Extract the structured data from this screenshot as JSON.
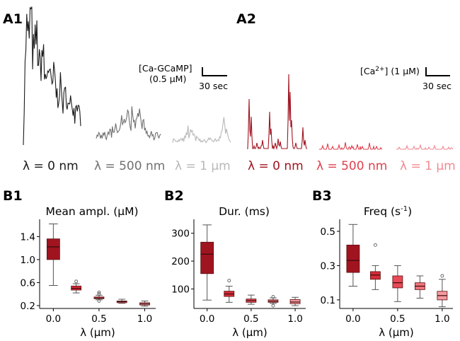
{
  "colors": {
    "gcamp": [
      "#1a1a1a",
      "#707070",
      "#b8b8b8"
    ],
    "calcium": [
      "#a01420",
      "#e0404f",
      "#f08a92"
    ],
    "box_outline": "#5a1010"
  },
  "panels": {
    "A1": {
      "label": "A1",
      "scale_label_line1": "[Ca-GCaMP]",
      "scale_label_line2": "(0.5 µM)",
      "scale_time": "30 sec",
      "traces": [
        {
          "label": "λ = 0 nm"
        },
        {
          "label": "λ = 500 nm"
        },
        {
          "label": "λ = 1 µm"
        }
      ]
    },
    "A2": {
      "label": "A2",
      "scale_label_prefix": "[Ca",
      "scale_label_sup": "2+",
      "scale_label_suffix": "] (1 µM)",
      "scale_time": "30 sec",
      "traces": [
        {
          "label": "λ = 0 nm"
        },
        {
          "label": "λ = 500 nm"
        },
        {
          "label": "λ = 1 µm"
        }
      ]
    }
  },
  "chart_data": [
    {
      "id": "B1",
      "panel_label": "B1",
      "type": "box",
      "title": "Mean ampl. (µM)",
      "xlabel": "λ (µm)",
      "ylim": [
        0.15,
        1.7
      ],
      "xlim": [
        -0.15,
        1.12
      ],
      "yticks": [
        0.2,
        0.6,
        1.0,
        1.4
      ],
      "ytick_labels": [
        "0.2",
        "0.6",
        "1.0",
        "1.4"
      ],
      "xticks": [
        0.0,
        0.5,
        1.0
      ],
      "xtick_labels": [
        "0.0",
        "0.5",
        "1.0"
      ],
      "boxes": [
        {
          "x": 0.0,
          "whislo": 0.55,
          "q1": 1.0,
          "med": 1.22,
          "q3": 1.36,
          "whishi": 1.62,
          "fliers": []
        },
        {
          "x": 0.25,
          "whislo": 0.42,
          "q1": 0.47,
          "med": 0.5,
          "q3": 0.54,
          "whishi": 0.58,
          "fliers": [
            0.62
          ]
        },
        {
          "x": 0.5,
          "whislo": 0.3,
          "q1": 0.32,
          "med": 0.33,
          "q3": 0.35,
          "whishi": 0.38,
          "fliers": [
            0.28,
            0.4,
            0.43
          ]
        },
        {
          "x": 0.75,
          "whislo": 0.24,
          "q1": 0.25,
          "med": 0.27,
          "q3": 0.28,
          "whishi": 0.31,
          "fliers": []
        },
        {
          "x": 1.0,
          "whislo": 0.19,
          "q1": 0.21,
          "med": 0.23,
          "q3": 0.25,
          "whishi": 0.28,
          "fliers": []
        }
      ]
    },
    {
      "id": "B2",
      "panel_label": "B2",
      "type": "box",
      "title": "Dur. (ms)",
      "xlabel": "λ (µm)",
      "ylim": [
        30,
        350
      ],
      "xlim": [
        -0.15,
        1.12
      ],
      "yticks": [
        100,
        200,
        300
      ],
      "ytick_labels": [
        "100",
        "200",
        "300"
      ],
      "xticks": [
        0.0,
        0.5,
        1.0
      ],
      "xtick_labels": [
        "0.0",
        "0.5",
        "1.0"
      ],
      "boxes": [
        {
          "x": 0.0,
          "whislo": 60,
          "q1": 155,
          "med": 225,
          "q3": 268,
          "whishi": 330,
          "fliers": []
        },
        {
          "x": 0.25,
          "whislo": 52,
          "q1": 73,
          "med": 82,
          "q3": 92,
          "whishi": 110,
          "fliers": [
            130
          ]
        },
        {
          "x": 0.5,
          "whislo": 45,
          "q1": 52,
          "med": 58,
          "q3": 64,
          "whishi": 78,
          "fliers": []
        },
        {
          "x": 0.75,
          "whislo": 48,
          "q1": 52,
          "med": 56,
          "q3": 61,
          "whishi": 68,
          "fliers": [
            40,
            72
          ]
        },
        {
          "x": 1.0,
          "whislo": 40,
          "q1": 47,
          "med": 53,
          "q3": 62,
          "whishi": 70,
          "fliers": []
        }
      ]
    },
    {
      "id": "B3",
      "panel_label": "B3",
      "type": "box",
      "title_main": "Freq (s",
      "title_sup": "-1",
      "title_end": ")",
      "xlabel": "λ (µm)",
      "ylim": [
        0.05,
        0.57
      ],
      "xlim": [
        -0.15,
        1.12
      ],
      "yticks": [
        0.1,
        0.3,
        0.5
      ],
      "ytick_labels": [
        "0.1",
        "0.3",
        "0.5"
      ],
      "xticks": [
        0.0,
        0.5,
        1.0
      ],
      "xtick_labels": [
        "0.0",
        "0.5",
        "1.0"
      ],
      "boxes": [
        {
          "x": 0.0,
          "whislo": 0.18,
          "q1": 0.26,
          "med": 0.33,
          "q3": 0.42,
          "whishi": 0.54,
          "fliers": []
        },
        {
          "x": 0.25,
          "whislo": 0.16,
          "q1": 0.22,
          "med": 0.245,
          "q3": 0.265,
          "whishi": 0.3,
          "fliers": [
            0.42
          ]
        },
        {
          "x": 0.5,
          "whislo": 0.09,
          "q1": 0.17,
          "med": 0.2,
          "q3": 0.24,
          "whishi": 0.3,
          "fliers": []
        },
        {
          "x": 0.75,
          "whislo": 0.11,
          "q1": 0.16,
          "med": 0.18,
          "q3": 0.2,
          "whishi": 0.24,
          "fliers": []
        },
        {
          "x": 1.0,
          "whislo": 0.06,
          "q1": 0.1,
          "med": 0.125,
          "q3": 0.15,
          "whishi": 0.22,
          "fliers": [
            0.24
          ]
        }
      ]
    }
  ]
}
